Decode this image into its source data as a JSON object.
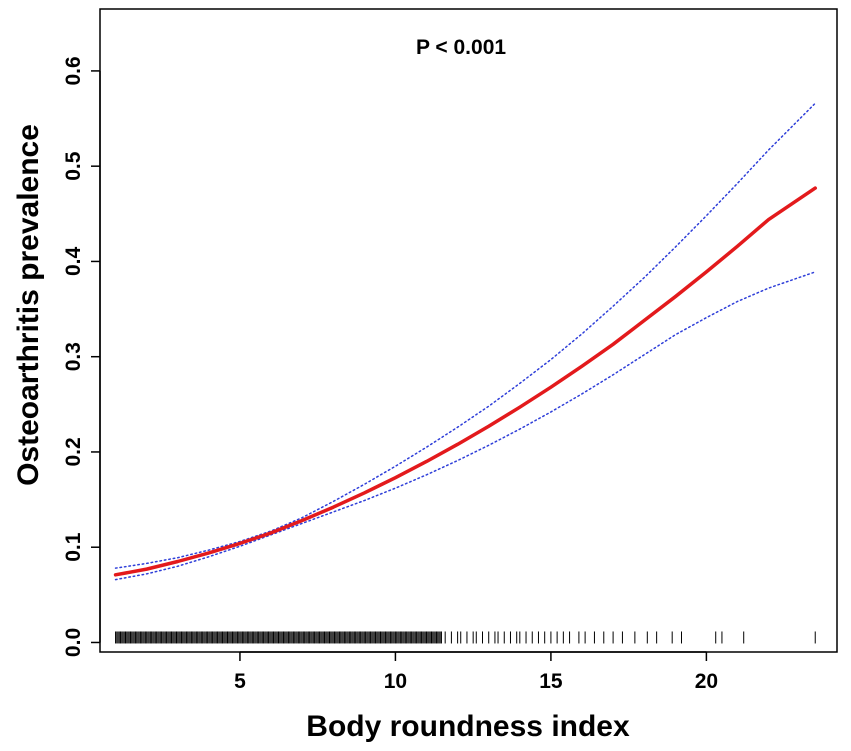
{
  "chart_data": {
    "type": "line",
    "title": "",
    "annotation": "P < 0.001",
    "xlabel": "Body roundness index",
    "ylabel": "Osteoarthritis prevalence",
    "xlim": [
      0.5,
      24.2
    ],
    "ylim": [
      -0.01,
      0.665
    ],
    "x_ticks": [
      5,
      10,
      15,
      20
    ],
    "y_ticks": [
      0.0,
      0.1,
      0.2,
      0.3,
      0.4,
      0.5,
      0.6
    ],
    "y_tick_labels": [
      "0.0",
      "0.1",
      "0.2",
      "0.3",
      "0.4",
      "0.5",
      "0.6"
    ],
    "grid": false,
    "legend": "none",
    "series": [
      {
        "role": "estimate",
        "color": "#e31a1c",
        "style": "solid",
        "x": [
          1,
          2,
          3,
          4,
          5,
          6,
          7,
          8,
          9,
          10,
          11,
          12,
          13,
          14,
          15,
          16,
          17,
          18,
          19,
          20,
          21,
          22,
          23.5
        ],
        "y": [
          0.071,
          0.077,
          0.085,
          0.094,
          0.104,
          0.115,
          0.128,
          0.142,
          0.157,
          0.173,
          0.19,
          0.208,
          0.227,
          0.247,
          0.268,
          0.29,
          0.313,
          0.338,
          0.363,
          0.389,
          0.416,
          0.444,
          0.477
        ]
      },
      {
        "role": "upper-ci",
        "color": "#2f3fd9",
        "style": "dotted",
        "x": [
          1,
          2,
          3,
          4,
          5,
          6,
          7,
          8,
          9,
          10,
          11,
          12,
          13,
          14,
          15,
          16,
          17,
          18,
          19,
          20,
          21,
          22,
          23.5
        ],
        "y": [
          0.078,
          0.083,
          0.089,
          0.097,
          0.106,
          0.117,
          0.131,
          0.148,
          0.166,
          0.185,
          0.205,
          0.226,
          0.248,
          0.272,
          0.297,
          0.324,
          0.353,
          0.383,
          0.415,
          0.448,
          0.482,
          0.517,
          0.566
        ]
      },
      {
        "role": "lower-ci",
        "color": "#2f3fd9",
        "style": "dotted",
        "x": [
          1,
          2,
          3,
          4,
          5,
          6,
          7,
          8,
          9,
          10,
          11,
          12,
          13,
          14,
          15,
          16,
          17,
          18,
          19,
          20,
          21,
          22,
          23.5
        ],
        "y": [
          0.066,
          0.072,
          0.08,
          0.09,
          0.101,
          0.113,
          0.125,
          0.137,
          0.149,
          0.162,
          0.176,
          0.191,
          0.207,
          0.224,
          0.242,
          0.261,
          0.281,
          0.302,
          0.323,
          0.341,
          0.358,
          0.372,
          0.389
        ]
      }
    ],
    "rug": {
      "color": "#000000",
      "dense_range": [
        1,
        11.5
      ],
      "dense_step": 0.04,
      "sparse_x": [
        11.6,
        11.8,
        12.0,
        12.1,
        12.3,
        12.5,
        12.6,
        12.8,
        13.0,
        13.2,
        13.3,
        13.5,
        13.7,
        13.9,
        14.0,
        14.2,
        14.4,
        14.6,
        14.8,
        15.0,
        15.2,
        15.4,
        15.6,
        15.9,
        16.1,
        16.4,
        16.7,
        17.0,
        17.3,
        17.7,
        18.1,
        18.4,
        18.9,
        19.2,
        20.3,
        20.5,
        21.2,
        23.5
      ]
    }
  }
}
